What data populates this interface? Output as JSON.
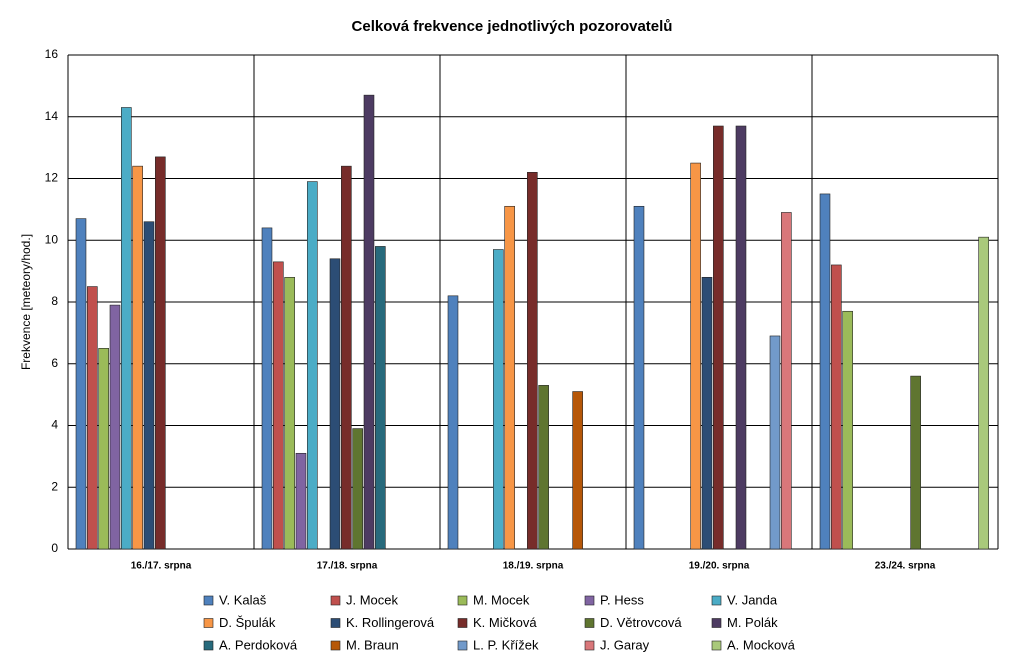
{
  "chart_data": {
    "type": "bar",
    "title": "Celková frekvence jednotlivých pozorovatelů",
    "y_label": "Frekvence [meteory/hod.]",
    "categories": [
      "16./17. srpna",
      "17./18. srpna",
      "18./19. srpna",
      "19./20. srpna",
      "23./24. srpna"
    ],
    "ylim": [
      0,
      16
    ],
    "yticks": [
      0,
      2,
      4,
      6,
      8,
      10,
      12,
      14,
      16
    ],
    "grid": true,
    "legend": "bottom",
    "series": [
      {
        "name": "V. Kalaš",
        "color": "#4f81bd",
        "values": [
          10.7,
          10.4,
          8.2,
          11.1,
          11.5
        ]
      },
      {
        "name": "J. Mocek",
        "color": "#c0504d",
        "values": [
          8.5,
          9.3,
          null,
          null,
          9.2
        ]
      },
      {
        "name": "M. Mocek",
        "color": "#9bbb59",
        "values": [
          6.5,
          8.8,
          null,
          null,
          7.7
        ]
      },
      {
        "name": "P. Hess",
        "color": "#8064a2",
        "values": [
          7.9,
          3.1,
          null,
          null,
          null
        ]
      },
      {
        "name": "V. Janda",
        "color": "#4bacc6",
        "values": [
          14.3,
          11.9,
          9.7,
          null,
          null
        ]
      },
      {
        "name": "D. Špulák",
        "color": "#f79646",
        "values": [
          12.4,
          null,
          11.1,
          12.5,
          null
        ]
      },
      {
        "name": "K. Rollingerová",
        "color": "#2c4d75",
        "values": [
          10.6,
          9.4,
          null,
          8.8,
          null
        ]
      },
      {
        "name": "K. Mičková",
        "color": "#772c2a",
        "values": [
          12.7,
          12.4,
          12.2,
          13.7,
          null
        ]
      },
      {
        "name": "D. Větrovcová",
        "color": "#5f7530",
        "values": [
          null,
          3.9,
          5.3,
          null,
          5.6
        ]
      },
      {
        "name": "M. Polák",
        "color": "#4d3b62",
        "values": [
          null,
          14.7,
          null,
          13.7,
          null
        ]
      },
      {
        "name": "A. Perdoková",
        "color": "#276a7c",
        "values": [
          null,
          9.8,
          null,
          null,
          null
        ]
      },
      {
        "name": "M. Braun",
        "color": "#b65708",
        "values": [
          null,
          null,
          5.1,
          null,
          null
        ]
      },
      {
        "name": "L. P. Křížek",
        "color": "#729aca",
        "values": [
          null,
          null,
          null,
          6.9,
          null
        ]
      },
      {
        "name": "J. Garay",
        "color": "#d9777a",
        "values": [
          null,
          null,
          null,
          10.9,
          null
        ]
      },
      {
        "name": "A. Mocková",
        "color": "#a9c97b",
        "values": [
          null,
          null,
          null,
          null,
          10.1
        ]
      }
    ]
  }
}
